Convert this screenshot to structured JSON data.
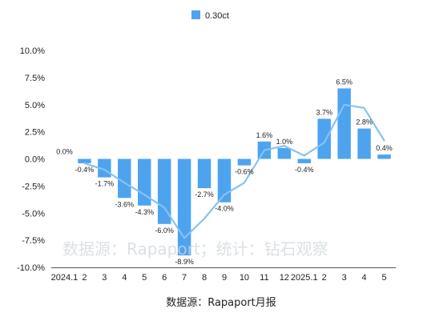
{
  "chart_data": {
    "type": "bar",
    "series": [
      {
        "name": "0.30ct",
        "values": [
          0.0,
          -0.4,
          -1.7,
          -3.6,
          -4.3,
          -6.0,
          -8.9,
          -2.7,
          -4.0,
          -0.6,
          1.6,
          1.0,
          -0.4,
          3.7,
          6.5,
          2.8,
          0.4
        ],
        "labels": [
          "0.0%",
          "-0.4%",
          "-1.7%",
          "-3.6%",
          "-4.3%",
          "-6.0%",
          "-8.9%",
          "-2.7%",
          "-4.0%",
          "-0.6%",
          "1.6%",
          "1.0%",
          "-0.4%",
          "3.7%",
          "6.5%",
          "2.8%",
          "0.4%"
        ]
      }
    ],
    "trend_line": [
      null,
      -0.4,
      -1.0,
      -2.2,
      -3.3,
      -4.5,
      -7.3,
      -5.5,
      -3.3,
      -2.2,
      0.8,
      1.2,
      0.3,
      1.5,
      5.0,
      4.7,
      1.7
    ],
    "categories": [
      "2024.1",
      "2",
      "3",
      "4",
      "5",
      "6",
      "7",
      "8",
      "9",
      "10",
      "11",
      "12",
      "2025.1",
      "2",
      "3",
      "4",
      "5"
    ],
    "ylim": [
      -10,
      10
    ],
    "yticks": [
      -10,
      -7.5,
      -5,
      -2.5,
      0,
      2.5,
      5,
      7.5,
      10
    ],
    "ytick_labels": [
      "-10.0%",
      "-7.5%",
      "-5.0%",
      "-2.5%",
      "0.0%",
      "2.5%",
      "5.0%",
      "7.5%",
      "10.0%"
    ],
    "legend_position": "top-center",
    "grid": false,
    "bar_color": "#4ea3ef",
    "line_color": "#86c2f3",
    "source_text": "数据源：Rapaport月报",
    "watermark_text": "数据源：Rapaport；统计：钻石观察"
  }
}
